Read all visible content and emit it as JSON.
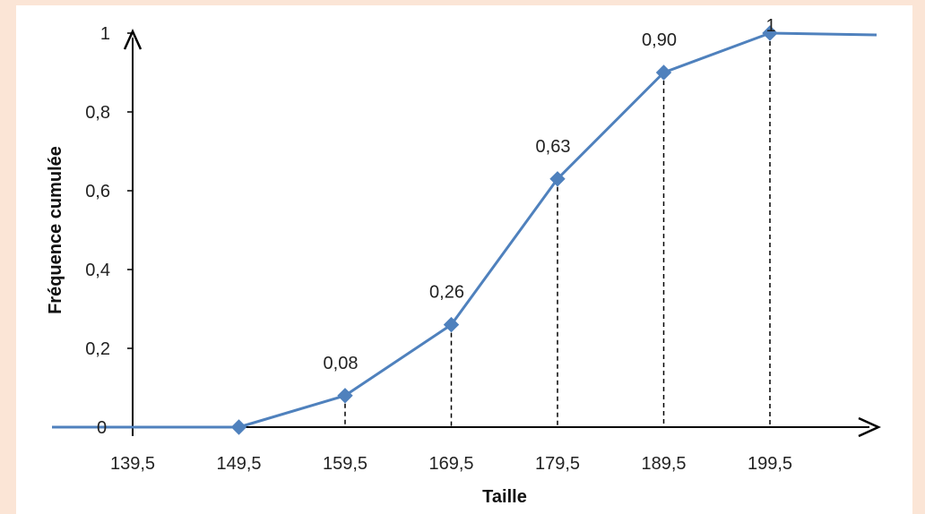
{
  "colors": {
    "line": "#4f81bd",
    "marker": "#4f81bd",
    "axis": "#000000",
    "background": "#fbe5d6"
  },
  "chart_data": {
    "type": "line",
    "title": "",
    "xlabel": "Taille",
    "ylabel": "Fréquence cumulée",
    "x_ticks": [
      "139,5",
      "149,5",
      "159,5",
      "169,5",
      "179,5",
      "189,5",
      "199,5"
    ],
    "y_ticks": [
      "0",
      "0,2",
      "0,4",
      "0,6",
      "0,8",
      "1"
    ],
    "ylim": [
      0,
      1
    ],
    "xlim": [
      139.5,
      199.5
    ],
    "series": [
      {
        "x": [
          149.5,
          159.5,
          169.5,
          179.5,
          189.5,
          199.5
        ],
        "y": [
          0,
          0.08,
          0.26,
          0.63,
          0.9,
          1
        ],
        "labels": [
          "",
          "0,08",
          "0,26",
          "0,63",
          "0,90",
          "1"
        ]
      }
    ],
    "grid": false,
    "legend": "none"
  }
}
